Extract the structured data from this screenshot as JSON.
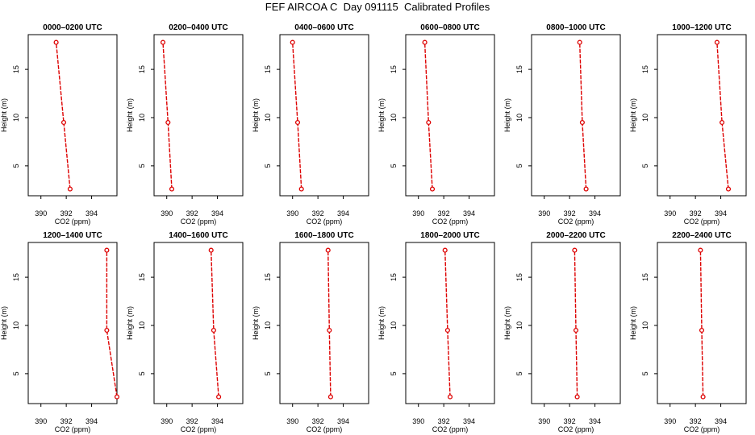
{
  "title": "FEF AIRCOA C  Day 091115  Calibrated Profiles",
  "colors": {
    "profile": "#dd0000",
    "frame": "#000000"
  },
  "chart_data": [
    {
      "type": "line",
      "title": "0000–0200 UTC",
      "xlabel": "CO2 (ppm)",
      "ylabel": "Height (m)",
      "xlim": [
        389,
        396
      ],
      "ylim": [
        1.9,
        18.6
      ],
      "xticks": [
        390,
        392,
        394
      ],
      "yticks": [
        5,
        10,
        15
      ],
      "series": [
        {
          "x": [
            392.3,
            391.8,
            391.2
          ],
          "y": [
            2.6,
            9.5,
            17.8
          ]
        }
      ]
    },
    {
      "type": "line",
      "title": "0200–0400 UTC",
      "xlabel": "CO2 (ppm)",
      "ylabel": "Height (m)",
      "xlim": [
        389,
        396
      ],
      "ylim": [
        1.9,
        18.6
      ],
      "xticks": [
        390,
        392,
        394
      ],
      "yticks": [
        5,
        10,
        15
      ],
      "series": [
        {
          "x": [
            390.4,
            390.1,
            389.7
          ],
          "y": [
            2.6,
            9.5,
            17.8
          ]
        }
      ]
    },
    {
      "type": "line",
      "title": "0400–0600 UTC",
      "xlabel": "CO2 (ppm)",
      "ylabel": "Height (m)",
      "xlim": [
        389,
        396
      ],
      "ylim": [
        1.9,
        18.6
      ],
      "xticks": [
        390,
        392,
        394
      ],
      "yticks": [
        5,
        10,
        15
      ],
      "series": [
        {
          "x": [
            390.7,
            390.4,
            390.0
          ],
          "y": [
            2.6,
            9.5,
            17.8
          ]
        }
      ]
    },
    {
      "type": "line",
      "title": "0600–0800 UTC",
      "xlabel": "CO2 (ppm)",
      "ylabel": "Height (m)",
      "xlim": [
        389,
        396
      ],
      "ylim": [
        1.9,
        18.6
      ],
      "xticks": [
        390,
        392,
        394
      ],
      "yticks": [
        5,
        10,
        15
      ],
      "series": [
        {
          "x": [
            391.1,
            390.8,
            390.5
          ],
          "y": [
            2.6,
            9.5,
            17.8
          ]
        }
      ]
    },
    {
      "type": "line",
      "title": "0800–1000 UTC",
      "xlabel": "CO2 (ppm)",
      "ylabel": "Height (m)",
      "xlim": [
        389,
        396
      ],
      "ylim": [
        1.9,
        18.6
      ],
      "xticks": [
        390,
        392,
        394
      ],
      "yticks": [
        5,
        10,
        15
      ],
      "series": [
        {
          "x": [
            393.3,
            393.0,
            392.8
          ],
          "y": [
            2.6,
            9.5,
            17.8
          ]
        }
      ]
    },
    {
      "type": "line",
      "title": "1000–1200 UTC",
      "xlabel": "CO2 (ppm)",
      "ylabel": "Height (m)",
      "xlim": [
        389,
        396
      ],
      "ylim": [
        1.9,
        18.6
      ],
      "xticks": [
        390,
        392,
        394
      ],
      "yticks": [
        5,
        10,
        15
      ],
      "series": [
        {
          "x": [
            394.6,
            394.1,
            393.7
          ],
          "y": [
            2.6,
            9.5,
            17.8
          ]
        }
      ]
    },
    {
      "type": "line",
      "title": "1200–1400 UTC",
      "xlabel": "CO2 (ppm)",
      "ylabel": "Height (m)",
      "xlim": [
        389,
        396
      ],
      "ylim": [
        1.9,
        18.6
      ],
      "xticks": [
        390,
        392,
        394
      ],
      "yticks": [
        5,
        10,
        15
      ],
      "series": [
        {
          "x": [
            396.0,
            395.2,
            395.2
          ],
          "y": [
            2.6,
            9.5,
            17.8
          ]
        }
      ]
    },
    {
      "type": "line",
      "title": "1400–1600 UTC",
      "xlabel": "CO2 (ppm)",
      "ylabel": "Height (m)",
      "xlim": [
        389,
        396
      ],
      "ylim": [
        1.9,
        18.6
      ],
      "xticks": [
        390,
        392,
        394
      ],
      "yticks": [
        5,
        10,
        15
      ],
      "series": [
        {
          "x": [
            394.1,
            393.7,
            393.5
          ],
          "y": [
            2.6,
            9.5,
            17.8
          ]
        }
      ]
    },
    {
      "type": "line",
      "title": "1600–1800 UTC",
      "xlabel": "CO2 (ppm)",
      "ylabel": "Height (m)",
      "xlim": [
        389,
        396
      ],
      "ylim": [
        1.9,
        18.6
      ],
      "xticks": [
        390,
        392,
        394
      ],
      "yticks": [
        5,
        10,
        15
      ],
      "series": [
        {
          "x": [
            393.0,
            392.9,
            392.8
          ],
          "y": [
            2.6,
            9.5,
            17.8
          ]
        }
      ]
    },
    {
      "type": "line",
      "title": "1800–2000 UTC",
      "xlabel": "CO2 (ppm)",
      "ylabel": "Height (m)",
      "xlim": [
        389,
        396
      ],
      "ylim": [
        1.9,
        18.6
      ],
      "xticks": [
        390,
        392,
        394
      ],
      "yticks": [
        5,
        10,
        15
      ],
      "series": [
        {
          "x": [
            392.5,
            392.3,
            392.1
          ],
          "y": [
            2.6,
            9.5,
            17.8
          ]
        }
      ]
    },
    {
      "type": "line",
      "title": "2000–2200 UTC",
      "xlabel": "CO2 (ppm)",
      "ylabel": "Height (m)",
      "xlim": [
        389,
        396
      ],
      "ylim": [
        1.9,
        18.6
      ],
      "xticks": [
        390,
        392,
        394
      ],
      "yticks": [
        5,
        10,
        15
      ],
      "series": [
        {
          "x": [
            392.6,
            392.5,
            392.4
          ],
          "y": [
            2.6,
            9.5,
            17.8
          ]
        }
      ]
    },
    {
      "type": "line",
      "title": "2200–2400 UTC",
      "xlabel": "CO2 (ppm)",
      "ylabel": "Height (m)",
      "xlim": [
        389,
        396
      ],
      "ylim": [
        1.9,
        18.6
      ],
      "xticks": [
        390,
        392,
        394
      ],
      "yticks": [
        5,
        10,
        15
      ],
      "series": [
        {
          "x": [
            392.6,
            392.5,
            392.4
          ],
          "y": [
            2.6,
            9.5,
            17.8
          ]
        }
      ]
    }
  ]
}
